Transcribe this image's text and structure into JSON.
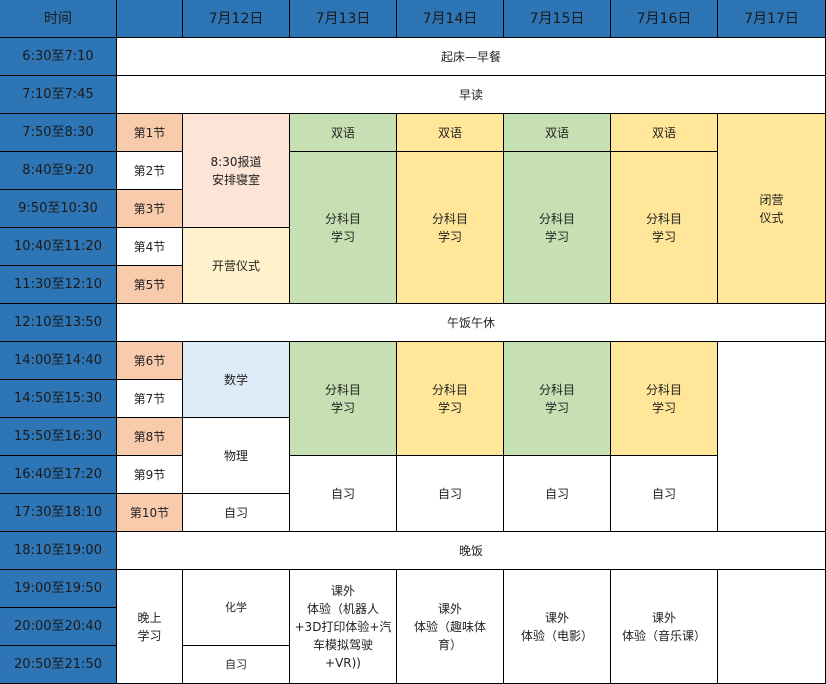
{
  "header": {
    "time": "时间",
    "period": "",
    "days": [
      "7月12日",
      "7月13日",
      "7月14日",
      "7月15日",
      "7月16日",
      "7月17日"
    ]
  },
  "times": [
    "6:30至7:10",
    "7:10至7:45",
    "7:50至8:30",
    "8:40至9:20",
    "9:50至10:30",
    "10:40至11:20",
    "11:30至12:10",
    "12:10至13:50",
    "14:00至14:40",
    "14:50至15:30",
    "15:50至16:30",
    "16:40至17:20",
    "17:30至18:10",
    "18:10至19:00",
    "19:00至19:50",
    "20:00至20:40",
    "20:50至21:50"
  ],
  "periods": [
    "第1节",
    "第2节",
    "第3节",
    "第4节",
    "第5节",
    "第6节",
    "第7节",
    "第8节",
    "第9节",
    "第10节"
  ],
  "banners": {
    "wake": "起床—早餐",
    "morning_read": "早读",
    "lunch": "午饭午休",
    "dinner": "晚饭",
    "evening_study": "晚上\n学习"
  },
  "day1": {
    "register": "8:30报道\n安排寝室",
    "opening": "开营仪式",
    "math": "数学",
    "physics": "物理",
    "self_study": "自习",
    "chemistry": "化学",
    "evening_self": "自习"
  },
  "bilingual": "双语",
  "subject_study": "分科目\n学习",
  "self_study": "自习",
  "closing": "闭营仪式",
  "closing_display": "闭营\n仪式",
  "activities": [
    "课外\n体验（机器人\n+3D打印体验+汽\n车模拟驾驶\n+VR))",
    "课外\n体验（趣味体\n育）",
    "课外\n体验（电影）",
    "课外\n体验（音乐课）"
  ],
  "colors": {
    "header": "#2e75b6",
    "period": "#f8cbad",
    "green": "#c6e0b4",
    "yellow": "#ffe699"
  }
}
